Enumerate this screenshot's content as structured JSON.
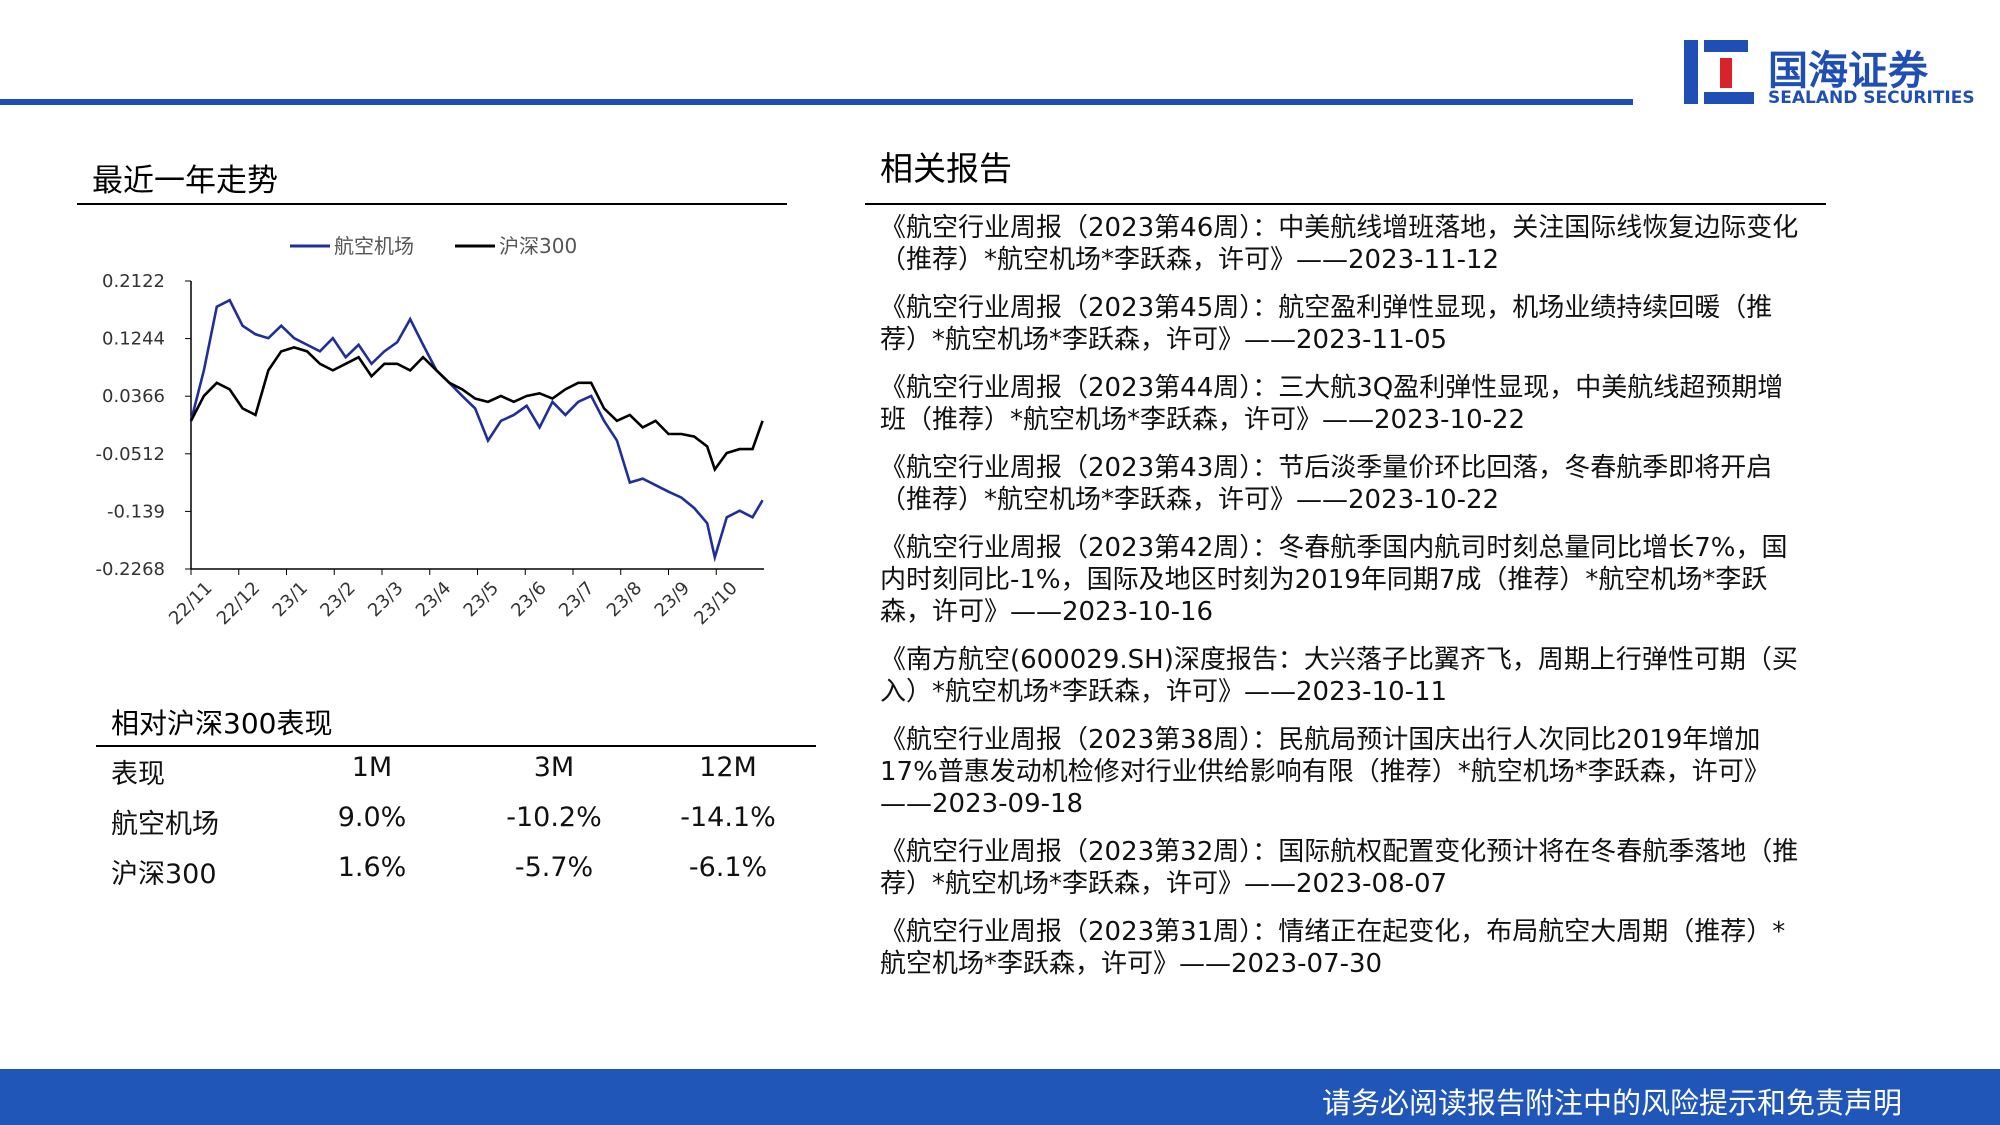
{
  "header": {
    "logo_cn": "国海证券",
    "logo_en": "SEALAND SECURITIES"
  },
  "chart_data": {
    "type": "line",
    "title": "最近一年走势",
    "x": [
      0,
      0.27,
      0.54,
      0.81,
      1.08,
      1.35,
      1.62,
      1.89,
      2.16,
      2.43,
      2.7,
      2.97,
      3.24,
      3.51,
      3.78,
      4.05,
      4.32,
      4.59,
      4.86,
      5.14,
      5.41,
      5.68,
      5.95,
      6.22,
      6.49,
      6.76,
      7.03,
      7.3,
      7.57,
      7.84,
      8.11,
      8.38,
      8.65,
      8.92,
      9.19,
      9.46,
      9.73,
      10,
      10.27,
      10.54,
      10.81,
      10.97,
      11.22,
      11.49,
      11.76,
      11.97
    ],
    "series": [
      {
        "name": "航空机场",
        "color": "#1f2f9a",
        "values": [
          -0.001,
          0.076,
          0.173,
          0.183,
          0.144,
          0.131,
          0.125,
          0.144,
          0.125,
          0.115,
          0.105,
          0.125,
          0.096,
          0.115,
          0.086,
          0.105,
          0.119,
          0.154,
          0.115,
          0.076,
          0.057,
          0.037,
          0.018,
          -0.031,
          -0.001,
          0.008,
          0.022,
          -0.011,
          0.028,
          0.008,
          0.028,
          0.037,
          -0.001,
          -0.031,
          -0.095,
          -0.089,
          -0.099,
          -0.109,
          -0.118,
          -0.134,
          -0.157,
          -0.209,
          -0.148,
          -0.138,
          -0.148,
          -0.122
        ]
      },
      {
        "name": "沪深300",
        "color": "#000000",
        "values": [
          -0.001,
          0.037,
          0.057,
          0.047,
          0.018,
          0.008,
          0.076,
          0.105,
          0.111,
          0.105,
          0.086,
          0.076,
          0.086,
          0.096,
          0.067,
          0.086,
          0.086,
          0.076,
          0.096,
          0.076,
          0.057,
          0.047,
          0.033,
          0.028,
          0.037,
          0.028,
          0.037,
          0.041,
          0.033,
          0.047,
          0.057,
          0.057,
          0.018,
          -0.001,
          0.008,
          -0.011,
          -0.001,
          -0.021,
          -0.021,
          -0.025,
          -0.04,
          -0.075,
          -0.05,
          -0.044,
          -0.044,
          -0.001
        ]
      }
    ],
    "xlim": [
      0,
      12
    ],
    "xticks": [
      {
        "value": 0,
        "label": "22/11"
      },
      {
        "value": 1,
        "label": "22/12"
      },
      {
        "value": 2,
        "label": "23/1"
      },
      {
        "value": 3,
        "label": "23/2"
      },
      {
        "value": 4,
        "label": "23/3"
      },
      {
        "value": 5,
        "label": "23/4"
      },
      {
        "value": 6,
        "label": "23/5"
      },
      {
        "value": 7,
        "label": "23/6"
      },
      {
        "value": 8,
        "label": "23/7"
      },
      {
        "value": 9,
        "label": "23/8"
      },
      {
        "value": 10,
        "label": "23/9"
      },
      {
        "value": 11,
        "label": "23/10"
      }
    ],
    "ylim": [
      -0.2268,
      0.2122
    ],
    "yticks": [
      0.2122,
      0.1244,
      0.0366,
      -0.0512,
      -0.139,
      -0.2268
    ]
  },
  "table": {
    "title": "相对沪深300表现",
    "header": [
      "表现",
      "1M",
      "3M",
      "12M"
    ],
    "rows": [
      [
        "航空机场",
        "9.0%",
        "-10.2%",
        "-14.1%"
      ],
      [
        "沪深300",
        "1.6%",
        "-5.7%",
        "-6.1%"
      ]
    ]
  },
  "reports": {
    "title": "相关报告",
    "items": [
      "《航空行业周报（2023第46周）：中美航线增班落地，关注国际线恢复边际变化（推荐）*航空机场*李跃森，许可》——2023-11-12",
      "《航空行业周报（2023第45周）：航空盈利弹性显现，机场业绩持续回暖（推荐）*航空机场*李跃森，许可》——2023-11-05",
      "《航空行业周报（2023第44周）：三大航3Q盈利弹性显现，中美航线超预期增班（推荐）*航空机场*李跃森，许可》——2023-10-22",
      "《航空行业周报（2023第43周）：节后淡季量价环比回落，冬春航季即将开启（推荐）*航空机场*李跃森，许可》——2023-10-22",
      "《航空行业周报（2023第42周）：冬春航季国内航司时刻总量同比增长7%，国内时刻同比-1%，国际及地区时刻为2019年同期7成（推荐）*航空机场*李跃森，许可》——2023-10-16",
      "《南方航空(600029.SH)深度报告：大兴落子比翼齐飞，周期上行弹性可期（买入）*航空机场*李跃森，许可》——2023-10-11",
      "《航空行业周报（2023第38周）：民航局预计国庆出行人次同比2019年增加17%普惠发动机检修对行业供给影响有限（推荐）*航空机场*李跃森，许可》——2023-09-18",
      "《航空行业周报（2023第32周）：国际航权配置变化预计将在冬春航季落地（推荐）*航空机场*李跃森，许可》——2023-08-07",
      "《航空行业周报（2023第31周）：情绪正在起变化，布局航空大周期（推荐）*航空机场*李跃森，许可》——2023-07-30"
    ]
  },
  "footer": "请务必阅读报告附注中的风险提示和免责声明"
}
